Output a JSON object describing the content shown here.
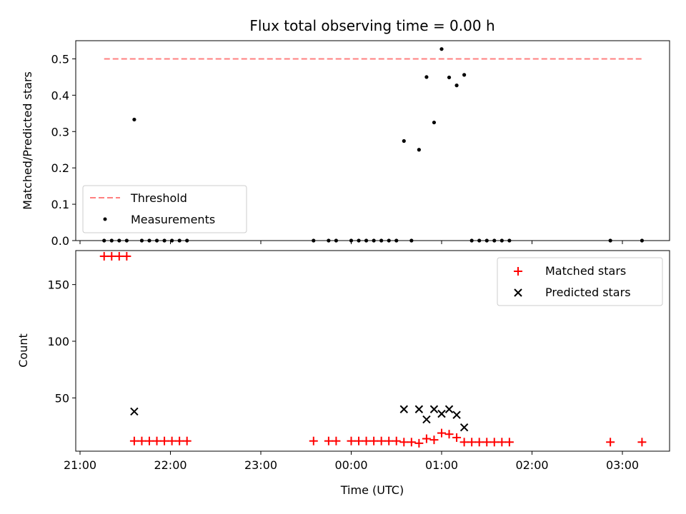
{
  "chart_data": [
    {
      "type": "scatter",
      "title": "Flux total observing time = 0.00 h",
      "ylabel": "Matched/Predicted stars",
      "ylim": [
        0,
        0.55
      ],
      "yticks": [
        "0.0",
        "0.1",
        "0.2",
        "0.3",
        "0.4",
        "0.5"
      ],
      "legend_position": "lower-left",
      "threshold": {
        "name": "Threshold",
        "value": 0.5,
        "x_start": "21:16",
        "x_end": "03:13",
        "color": "#ff7f7f",
        "style": "dashed"
      },
      "series": [
        {
          "name": "Measurements",
          "color": "#000000",
          "points": [
            [
              "21:16",
              0
            ],
            [
              "21:21",
              0
            ],
            [
              "21:26",
              0
            ],
            [
              "21:31",
              0
            ],
            [
              "21:36",
              0.333
            ],
            [
              "21:41",
              0
            ],
            [
              "21:46",
              0
            ],
            [
              "21:51",
              0
            ],
            [
              "21:56",
              0
            ],
            [
              "22:01",
              0
            ],
            [
              "22:06",
              0
            ],
            [
              "22:11",
              0
            ],
            [
              "23:35",
              0
            ],
            [
              "23:45",
              0
            ],
            [
              "23:50",
              0
            ],
            [
              "00:00",
              0
            ],
            [
              "00:05",
              0
            ],
            [
              "00:10",
              0
            ],
            [
              "00:15",
              0
            ],
            [
              "00:20",
              0
            ],
            [
              "00:25",
              0
            ],
            [
              "00:30",
              0
            ],
            [
              "00:35",
              0.274
            ],
            [
              "00:40",
              0
            ],
            [
              "00:45",
              0.25
            ],
            [
              "00:50",
              0.45
            ],
            [
              "00:55",
              0.325
            ],
            [
              "01:00",
              0.527
            ],
            [
              "01:05",
              0.449
            ],
            [
              "01:10",
              0.427
            ],
            [
              "01:15",
              0.456
            ],
            [
              "01:20",
              0
            ],
            [
              "01:25",
              0
            ],
            [
              "01:30",
              0
            ],
            [
              "01:35",
              0
            ],
            [
              "01:40",
              0
            ],
            [
              "01:45",
              0
            ],
            [
              "02:52",
              0
            ],
            [
              "03:13",
              0
            ]
          ]
        }
      ]
    },
    {
      "type": "scatter",
      "xlabel": "Time (UTC)",
      "ylabel": "Count",
      "ylim": [
        3,
        180
      ],
      "yticks": [
        "50",
        "100",
        "150"
      ],
      "xticks": [
        "21:00",
        "22:00",
        "23:00",
        "00:00",
        "01:00",
        "02:00",
        "03:00"
      ],
      "legend_position": "upper-right",
      "series": [
        {
          "name": "Matched stars",
          "color": "#ff0000",
          "marker": "+",
          "points": [
            [
              "21:16",
              175
            ],
            [
              "21:21",
              175
            ],
            [
              "21:26",
              175
            ],
            [
              "21:31",
              175
            ],
            [
              "21:36",
              12
            ],
            [
              "21:41",
              12
            ],
            [
              "21:46",
              12
            ],
            [
              "21:51",
              12
            ],
            [
              "21:56",
              12
            ],
            [
              "22:01",
              12
            ],
            [
              "22:06",
              12
            ],
            [
              "22:11",
              12
            ],
            [
              "23:35",
              12
            ],
            [
              "23:45",
              12
            ],
            [
              "23:50",
              12
            ],
            [
              "00:00",
              12
            ],
            [
              "00:05",
              12
            ],
            [
              "00:10",
              12
            ],
            [
              "00:15",
              12
            ],
            [
              "00:20",
              12
            ],
            [
              "00:25",
              12
            ],
            [
              "00:30",
              12
            ],
            [
              "00:35",
              11
            ],
            [
              "00:40",
              11
            ],
            [
              "00:45",
              10
            ],
            [
              "00:50",
              14
            ],
            [
              "00:55",
              13
            ],
            [
              "01:00",
              19
            ],
            [
              "01:05",
              18
            ],
            [
              "01:10",
              15
            ],
            [
              "01:15",
              11
            ],
            [
              "01:20",
              11
            ],
            [
              "01:25",
              11
            ],
            [
              "01:30",
              11
            ],
            [
              "01:35",
              11
            ],
            [
              "01:40",
              11
            ],
            [
              "01:45",
              11
            ],
            [
              "02:52",
              11
            ],
            [
              "03:13",
              11
            ]
          ]
        },
        {
          "name": "Predicted stars",
          "color": "#000000",
          "marker": "x",
          "points": [
            [
              "21:36",
              38
            ],
            [
              "00:35",
              40
            ],
            [
              "00:45",
              40
            ],
            [
              "00:50",
              31
            ],
            [
              "00:55",
              40
            ],
            [
              "01:00",
              36
            ],
            [
              "01:05",
              40
            ],
            [
              "01:10",
              35
            ],
            [
              "01:15",
              24
            ]
          ]
        }
      ]
    }
  ]
}
